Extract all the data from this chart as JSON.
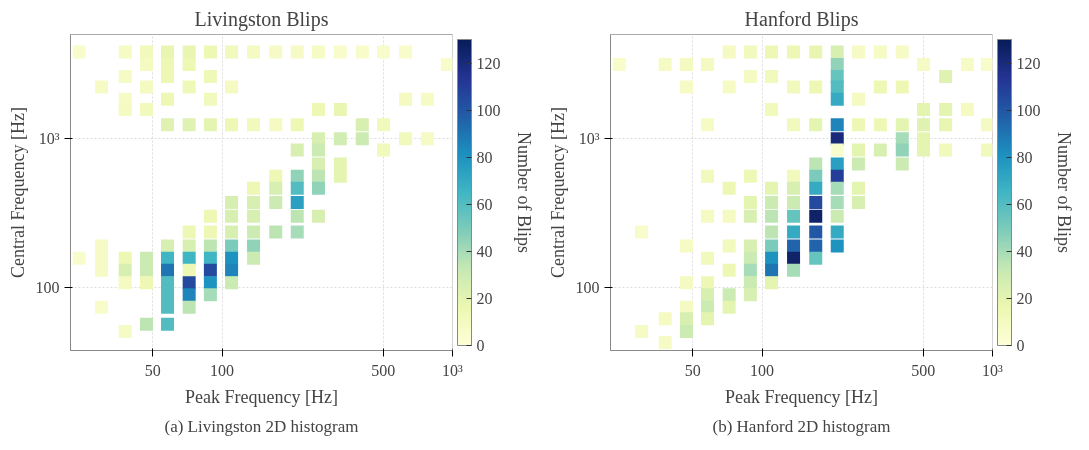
{
  "chart_data": [
    {
      "type": "scatter",
      "title": "Livingston Blips",
      "xlabel": "Peak Frequency [Hz]",
      "ylabel": "Central Frequency [Hz]",
      "clabel": "Number of Blips",
      "annotations": [
        "(a) Livingston 2D histogram"
      ],
      "log": "xy",
      "marker": "square",
      "grid": true,
      "xlim": [
        22,
        1000
      ],
      "ylim": [
        38,
        5000
      ],
      "xticks": [
        50,
        100,
        500,
        {
          "value": 1000,
          "label": "10³"
        }
      ],
      "yticks": [
        100,
        {
          "value": 1000,
          "label": "10³"
        }
      ],
      "clim": [
        0,
        130
      ],
      "cticks": [
        0,
        20,
        40,
        60,
        80,
        100,
        120
      ],
      "series": [
        {
          "x": [
            24,
            30,
            38,
            38,
            38,
            38,
            47,
            47,
            47,
            47,
            58,
            58,
            58,
            58,
            58,
            72,
            72,
            72,
            72,
            89,
            89,
            89,
            89,
            110,
            110,
            110,
            137,
            137,
            171,
            171,
            212,
            212,
            262,
            262,
            262,
            326,
            326,
            326,
            406,
            406,
            406,
            502,
            502,
            502,
            626,
            626,
            626,
            778,
            778,
            950,
            212,
            212,
            212,
            212,
            212,
            212,
            262,
            262,
            262,
            262,
            262,
            326,
            326,
            171,
            171,
            171,
            171,
            137,
            137,
            137,
            137,
            137,
            137,
            110,
            110,
            110,
            110,
            110,
            110,
            110,
            89,
            89,
            89,
            89,
            89,
            89,
            89,
            72,
            72,
            72,
            72,
            72,
            72,
            72,
            58,
            58,
            58,
            58,
            58,
            58,
            58,
            47,
            47,
            47,
            47,
            38,
            38,
            38,
            38,
            30,
            30,
            30,
            30,
            24
          ],
          "values": [
            3810,
            2220,
            3810,
            2610,
            1840,
            1570,
            3810,
            3150,
            2220,
            1570,
            3810,
            3150,
            2610,
            1840,
            1240,
            3810,
            3150,
            2220,
            1240,
            3810,
            2610,
            1840,
            1240,
            3810,
            2220,
            1240,
            3810,
            1240,
            3810,
            1240,
            3810,
            1240,
            3810,
            1570,
            1000,
            3810,
            1570,
            1000,
            3810,
            1240,
            1000,
            3810,
            1240,
            841,
            3810,
            1840,
            1000,
            1840,
            1000,
            3150,
            841,
            561,
            465,
            374,
            302,
            237,
            841,
            678,
            561,
            465,
            302,
            678,
            561,
            561,
            465,
            374,
            237,
            465,
            374,
            302,
            237,
            191,
            158,
            374,
            302,
            237,
            191,
            158,
            131,
            108,
            302,
            237,
            191,
            158,
            131,
            108,
            90,
            237,
            191,
            158,
            131,
            108,
            90,
            74,
            191,
            158,
            131,
            108,
            90,
            74,
            57,
            158,
            131,
            108,
            57,
            158,
            131,
            108,
            51,
            191,
            158,
            131,
            74,
            158
          ],
          "cvalues": [
            6,
            8,
            8,
            8,
            8,
            10,
            12,
            10,
            10,
            12,
            18,
            15,
            15,
            15,
            22,
            18,
            16,
            14,
            22,
            16,
            14,
            12,
            20,
            12,
            10,
            15,
            10,
            12,
            8,
            10,
            8,
            15,
            8,
            15,
            25,
            6,
            18,
            28,
            6,
            25,
            30,
            6,
            12,
            12,
            6,
            10,
            12,
            8,
            8,
            6,
            25,
            45,
            60,
            75,
            35,
            40,
            30,
            25,
            35,
            45,
            25,
            20,
            20,
            15,
            25,
            30,
            35,
            15,
            25,
            25,
            30,
            45,
            30,
            25,
            25,
            25,
            50,
            80,
            85,
            30,
            15,
            15,
            35,
            65,
            105,
            80,
            40,
            15,
            25,
            65,
            15,
            105,
            85,
            35,
            25,
            65,
            90,
            60,
            60,
            60,
            60,
            30,
            30,
            15,
            35,
            15,
            25,
            10,
            8,
            8,
            8,
            8,
            6,
            6
          ]
        }
      ]
    },
    {
      "type": "scatter",
      "title": "Hanford Blips",
      "xlabel": "Peak Frequency [Hz]",
      "ylabel": "Central Frequency [Hz]",
      "clabel": "Number of Blips",
      "annotations": [
        "(b) Hanford 2D histogram"
      ],
      "log": "xy",
      "marker": "square",
      "grid": true,
      "xlim": [
        22,
        1000
      ],
      "ylim": [
        38,
        5000
      ],
      "xticks": [
        50,
        100,
        500,
        {
          "value": 1000,
          "label": "10³"
        }
      ],
      "yticks": [
        100,
        {
          "value": 1000,
          "label": "10³"
        }
      ],
      "clim": [
        0,
        130
      ],
      "cticks": [
        0,
        20,
        40,
        60,
        80,
        100,
        120
      ],
      "series": [
        {
          "x": [
            24,
            38,
            47,
            47,
            58,
            58,
            72,
            72,
            89,
            89,
            110,
            110,
            110,
            137,
            137,
            137,
            171,
            171,
            171,
            212,
            212,
            212,
            212,
            212,
            212,
            212,
            212,
            262,
            262,
            262,
            262,
            326,
            326,
            326,
            326,
            406,
            406,
            406,
            406,
            406,
            406,
            502,
            502,
            502,
            502,
            502,
            626,
            626,
            626,
            626,
            778,
            778,
            950,
            950,
            950,
            212,
            212,
            212,
            212,
            212,
            212,
            212,
            171,
            171,
            171,
            171,
            171,
            171,
            171,
            171,
            262,
            262,
            262,
            137,
            137,
            137,
            137,
            137,
            137,
            137,
            137,
            110,
            110,
            110,
            110,
            110,
            110,
            110,
            110,
            89,
            89,
            89,
            89,
            89,
            89,
            89,
            89,
            72,
            72,
            72,
            72,
            72,
            72,
            58,
            58,
            58,
            58,
            58,
            58,
            58,
            47,
            47,
            47,
            47,
            47,
            38,
            38,
            30,
            30
          ],
          "values": [
            3150,
            3150,
            3150,
            2220,
            3150,
            1240,
            3810,
            2220,
            3810,
            2610,
            3810,
            2610,
            1570,
            3810,
            2220,
            1240,
            3810,
            2220,
            1240,
            3810,
            3150,
            2610,
            2220,
            1840,
            1240,
            1000,
            841,
            3810,
            1840,
            1240,
            841,
            3810,
            2220,
            1240,
            841,
            3810,
            2220,
            1240,
            1000,
            841,
            678,
            3150,
            1570,
            1240,
            1000,
            841,
            2610,
            1570,
            1240,
            841,
            3150,
            1570,
            3150,
            1240,
            841,
            678,
            561,
            465,
            374,
            302,
            237,
            191,
            678,
            561,
            465,
            374,
            302,
            237,
            191,
            158,
            678,
            465,
            374,
            561,
            465,
            374,
            302,
            237,
            191,
            158,
            131,
            465,
            374,
            302,
            237,
            191,
            158,
            131,
            108,
            561,
            374,
            302,
            191,
            158,
            131,
            108,
            90,
            465,
            302,
            191,
            131,
            90,
            74,
            561,
            302,
            158,
            108,
            90,
            74,
            62,
            191,
            108,
            74,
            62,
            51,
            62,
            43,
            237,
            51
          ],
          "cvalues": [
            6,
            8,
            10,
            8,
            10,
            8,
            10,
            8,
            12,
            10,
            15,
            12,
            12,
            15,
            12,
            12,
            18,
            15,
            20,
            25,
            45,
            55,
            60,
            70,
            85,
            120,
            5,
            8,
            10,
            15,
            20,
            8,
            15,
            15,
            25,
            8,
            15,
            20,
            40,
            45,
            30,
            8,
            20,
            22,
            20,
            20,
            22,
            20,
            18,
            12,
            8,
            10,
            6,
            10,
            12,
            75,
            110,
            40,
            40,
            30,
            70,
            80,
            35,
            50,
            70,
            105,
            125,
            100,
            95,
            55,
            30,
            20,
            25,
            12,
            25,
            30,
            55,
            70,
            95,
            125,
            40,
            20,
            30,
            35,
            35,
            50,
            80,
            90,
            20,
            15,
            20,
            25,
            25,
            30,
            40,
            30,
            25,
            15,
            10,
            12,
            15,
            30,
            20,
            12,
            10,
            12,
            15,
            25,
            30,
            20,
            8,
            10,
            10,
            25,
            30,
            10,
            8,
            6,
            8
          ]
        }
      ]
    }
  ]
}
